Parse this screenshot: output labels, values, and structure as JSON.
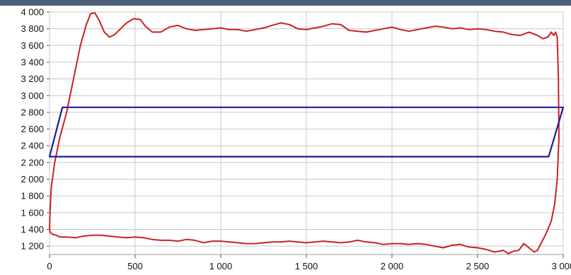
{
  "chart_data": {
    "type": "line",
    "title": "",
    "xlabel": "",
    "ylabel": "",
    "xlim": [
      0,
      3000
    ],
    "ylim": [
      1100,
      4000
    ],
    "grid": true,
    "x_ticks": [
      0,
      500,
      1000,
      1500,
      2000,
      2500,
      3000
    ],
    "x_tick_labels": [
      "0",
      "500",
      "1 000",
      "1 500",
      "2 000",
      "2 500",
      "3 000"
    ],
    "y_ticks": [
      1200,
      1400,
      1600,
      1800,
      2000,
      2200,
      2400,
      2600,
      2800,
      3000,
      3200,
      3400,
      3600,
      3800,
      4000
    ],
    "y_tick_labels": [
      "1 200",
      "1 400",
      "1 600",
      "1 800",
      "2 000",
      "2 200",
      "2 400",
      "2 600",
      "2 800",
      "3 000",
      "3 200",
      "3 400",
      "3 600",
      "3 800",
      "4 000"
    ],
    "series": [
      {
        "color": "#cc2020",
        "points": [
          [
            0,
            1400
          ],
          [
            3,
            1600
          ],
          [
            10,
            1900
          ],
          [
            30,
            2200
          ],
          [
            60,
            2500
          ],
          [
            100,
            2800
          ],
          [
            140,
            3200
          ],
          [
            180,
            3600
          ],
          [
            215,
            3850
          ],
          [
            240,
            3980
          ],
          [
            265,
            3990
          ],
          [
            290,
            3900
          ],
          [
            320,
            3760
          ],
          [
            350,
            3700
          ],
          [
            380,
            3730
          ],
          [
            410,
            3790
          ],
          [
            450,
            3870
          ],
          [
            490,
            3920
          ],
          [
            530,
            3910
          ],
          [
            560,
            3830
          ],
          [
            600,
            3760
          ],
          [
            650,
            3760
          ],
          [
            700,
            3820
          ],
          [
            750,
            3840
          ],
          [
            800,
            3800
          ],
          [
            850,
            3780
          ],
          [
            900,
            3790
          ],
          [
            950,
            3800
          ],
          [
            1000,
            3810
          ],
          [
            1050,
            3790
          ],
          [
            1100,
            3790
          ],
          [
            1150,
            3770
          ],
          [
            1200,
            3790
          ],
          [
            1250,
            3810
          ],
          [
            1300,
            3840
          ],
          [
            1350,
            3870
          ],
          [
            1400,
            3850
          ],
          [
            1450,
            3800
          ],
          [
            1500,
            3790
          ],
          [
            1550,
            3810
          ],
          [
            1600,
            3830
          ],
          [
            1650,
            3860
          ],
          [
            1700,
            3850
          ],
          [
            1750,
            3780
          ],
          [
            1800,
            3770
          ],
          [
            1850,
            3760
          ],
          [
            1900,
            3780
          ],
          [
            1950,
            3800
          ],
          [
            2000,
            3820
          ],
          [
            2050,
            3790
          ],
          [
            2100,
            3770
          ],
          [
            2150,
            3790
          ],
          [
            2200,
            3810
          ],
          [
            2250,
            3830
          ],
          [
            2300,
            3820
          ],
          [
            2350,
            3800
          ],
          [
            2400,
            3810
          ],
          [
            2450,
            3790
          ],
          [
            2500,
            3800
          ],
          [
            2550,
            3790
          ],
          [
            2600,
            3770
          ],
          [
            2650,
            3760
          ],
          [
            2700,
            3730
          ],
          [
            2750,
            3720
          ],
          [
            2800,
            3760
          ],
          [
            2850,
            3720
          ],
          [
            2880,
            3680
          ],
          [
            2910,
            3700
          ],
          [
            2930,
            3760
          ],
          [
            2945,
            3720
          ],
          [
            2955,
            3760
          ],
          [
            2965,
            3700
          ],
          [
            2972,
            3200
          ],
          [
            2975,
            2500
          ],
          [
            2965,
            2000
          ],
          [
            2950,
            1700
          ],
          [
            2930,
            1500
          ],
          [
            2900,
            1350
          ],
          [
            2870,
            1230
          ],
          [
            2850,
            1150
          ],
          [
            2830,
            1130
          ],
          [
            2800,
            1180
          ],
          [
            2770,
            1230
          ],
          [
            2740,
            1150
          ],
          [
            2710,
            1140
          ],
          [
            2680,
            1110
          ],
          [
            2650,
            1150
          ],
          [
            2600,
            1130
          ],
          [
            2550,
            1160
          ],
          [
            2500,
            1180
          ],
          [
            2450,
            1190
          ],
          [
            2400,
            1220
          ],
          [
            2350,
            1210
          ],
          [
            2300,
            1180
          ],
          [
            2250,
            1200
          ],
          [
            2200,
            1220
          ],
          [
            2150,
            1230
          ],
          [
            2100,
            1220
          ],
          [
            2050,
            1230
          ],
          [
            2000,
            1230
          ],
          [
            1950,
            1220
          ],
          [
            1900,
            1240
          ],
          [
            1850,
            1250
          ],
          [
            1800,
            1270
          ],
          [
            1750,
            1250
          ],
          [
            1700,
            1240
          ],
          [
            1650,
            1250
          ],
          [
            1600,
            1260
          ],
          [
            1550,
            1250
          ],
          [
            1500,
            1240
          ],
          [
            1450,
            1250
          ],
          [
            1400,
            1260
          ],
          [
            1350,
            1250
          ],
          [
            1300,
            1250
          ],
          [
            1250,
            1240
          ],
          [
            1200,
            1230
          ],
          [
            1150,
            1230
          ],
          [
            1100,
            1240
          ],
          [
            1050,
            1250
          ],
          [
            1000,
            1260
          ],
          [
            950,
            1260
          ],
          [
            900,
            1240
          ],
          [
            850,
            1270
          ],
          [
            800,
            1280
          ],
          [
            750,
            1260
          ],
          [
            700,
            1270
          ],
          [
            650,
            1270
          ],
          [
            600,
            1280
          ],
          [
            550,
            1300
          ],
          [
            500,
            1310
          ],
          [
            450,
            1300
          ],
          [
            400,
            1310
          ],
          [
            350,
            1320
          ],
          [
            300,
            1330
          ],
          [
            250,
            1330
          ],
          [
            200,
            1320
          ],
          [
            150,
            1300
          ],
          [
            100,
            1310
          ],
          [
            60,
            1310
          ],
          [
            40,
            1330
          ],
          [
            20,
            1340
          ],
          [
            5,
            1360
          ],
          [
            0,
            1400
          ]
        ]
      },
      {
        "color": "#1c1c9c",
        "points": [
          [
            0,
            2270
          ],
          [
            75,
            2860
          ],
          [
            3000,
            2860
          ],
          [
            2915,
            2270
          ],
          [
            0,
            2270
          ]
        ]
      }
    ]
  }
}
